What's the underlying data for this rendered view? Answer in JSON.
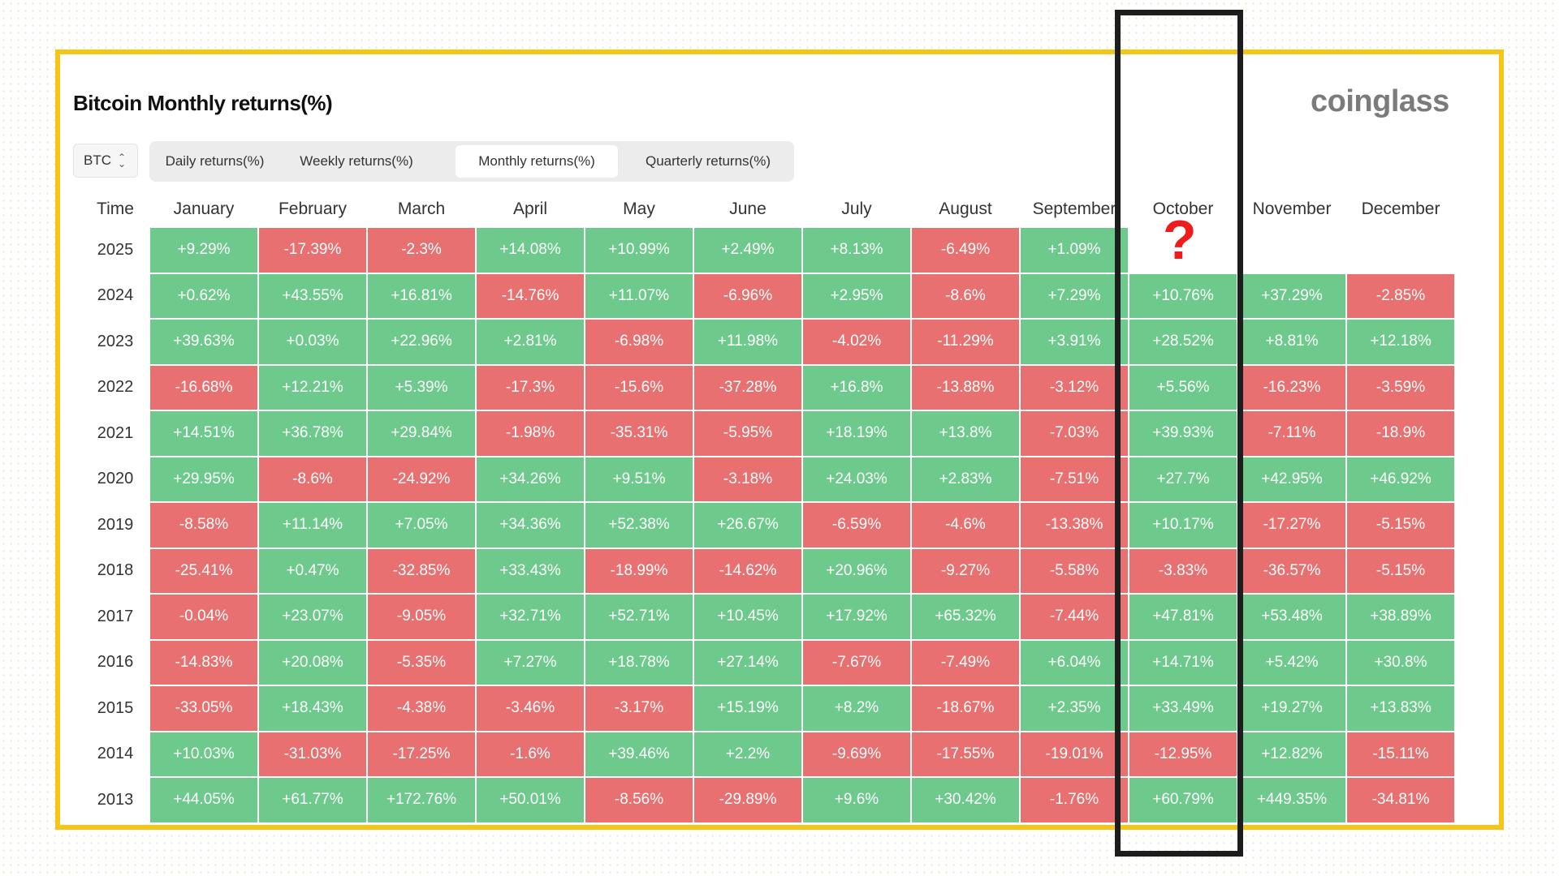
{
  "title": "Bitcoin Monthly returns(%)",
  "brand": "coinglass",
  "asset": {
    "selected": "BTC",
    "icon": "chevron-updown-icon"
  },
  "tabs": [
    {
      "label": "Daily returns(%)",
      "active": false
    },
    {
      "label": "Weekly returns(%)",
      "active": false
    },
    {
      "label": "Monthly returns(%)",
      "active": true
    },
    {
      "label": "Quarterly returns(%)",
      "active": false
    }
  ],
  "table": {
    "time_header": "Time",
    "months": [
      "January",
      "February",
      "March",
      "April",
      "May",
      "June",
      "July",
      "August",
      "September",
      "October",
      "November",
      "December"
    ],
    "rows": [
      {
        "year": "2025",
        "values": [
          "+9.29%",
          "-17.39%",
          "-2.3%",
          "+14.08%",
          "+10.99%",
          "+2.49%",
          "+8.13%",
          "-6.49%",
          "+1.09%",
          "",
          "",
          ""
        ]
      },
      {
        "year": "2024",
        "values": [
          "+0.62%",
          "+43.55%",
          "+16.81%",
          "-14.76%",
          "+11.07%",
          "-6.96%",
          "+2.95%",
          "-8.6%",
          "+7.29%",
          "+10.76%",
          "+37.29%",
          "-2.85%"
        ]
      },
      {
        "year": "2023",
        "values": [
          "+39.63%",
          "+0.03%",
          "+22.96%",
          "+2.81%",
          "-6.98%",
          "+11.98%",
          "-4.02%",
          "-11.29%",
          "+3.91%",
          "+28.52%",
          "+8.81%",
          "+12.18%"
        ]
      },
      {
        "year": "2022",
        "values": [
          "-16.68%",
          "+12.21%",
          "+5.39%",
          "-17.3%",
          "-15.6%",
          "-37.28%",
          "+16.8%",
          "-13.88%",
          "-3.12%",
          "+5.56%",
          "-16.23%",
          "-3.59%"
        ]
      },
      {
        "year": "2021",
        "values": [
          "+14.51%",
          "+36.78%",
          "+29.84%",
          "-1.98%",
          "-35.31%",
          "-5.95%",
          "+18.19%",
          "+13.8%",
          "-7.03%",
          "+39.93%",
          "-7.11%",
          "-18.9%"
        ]
      },
      {
        "year": "2020",
        "values": [
          "+29.95%",
          "-8.6%",
          "-24.92%",
          "+34.26%",
          "+9.51%",
          "-3.18%",
          "+24.03%",
          "+2.83%",
          "-7.51%",
          "+27.7%",
          "+42.95%",
          "+46.92%"
        ]
      },
      {
        "year": "2019",
        "values": [
          "-8.58%",
          "+11.14%",
          "+7.05%",
          "+34.36%",
          "+52.38%",
          "+26.67%",
          "-6.59%",
          "-4.6%",
          "-13.38%",
          "+10.17%",
          "-17.27%",
          "-5.15%"
        ]
      },
      {
        "year": "2018",
        "values": [
          "-25.41%",
          "+0.47%",
          "-32.85%",
          "+33.43%",
          "-18.99%",
          "-14.62%",
          "+20.96%",
          "-9.27%",
          "-5.58%",
          "-3.83%",
          "-36.57%",
          "-5.15%"
        ]
      },
      {
        "year": "2017",
        "values": [
          "-0.04%",
          "+23.07%",
          "-9.05%",
          "+32.71%",
          "+52.71%",
          "+10.45%",
          "+17.92%",
          "+65.32%",
          "-7.44%",
          "+47.81%",
          "+53.48%",
          "+38.89%"
        ]
      },
      {
        "year": "2016",
        "values": [
          "-14.83%",
          "+20.08%",
          "-5.35%",
          "+7.27%",
          "+18.78%",
          "+27.14%",
          "-7.67%",
          "-7.49%",
          "+6.04%",
          "+14.71%",
          "+5.42%",
          "+30.8%"
        ]
      },
      {
        "year": "2015",
        "values": [
          "-33.05%",
          "+18.43%",
          "-4.38%",
          "-3.46%",
          "-3.17%",
          "+15.19%",
          "+8.2%",
          "-18.67%",
          "+2.35%",
          "+33.49%",
          "+19.27%",
          "+13.83%"
        ]
      },
      {
        "year": "2014",
        "values": [
          "+10.03%",
          "-31.03%",
          "-17.25%",
          "-1.6%",
          "+39.46%",
          "+2.2%",
          "-9.69%",
          "-17.55%",
          "-19.01%",
          "-12.95%",
          "+12.82%",
          "-15.11%"
        ]
      },
      {
        "year": "2013",
        "values": [
          "+44.05%",
          "+61.77%",
          "+172.76%",
          "+50.01%",
          "-8.56%",
          "-29.89%",
          "+9.6%",
          "+30.42%",
          "-1.76%",
          "+60.79%",
          "+449.35%",
          "-34.81%"
        ]
      }
    ]
  },
  "annotation": {
    "mark": "?",
    "highlighted_column": "October"
  },
  "colors": {
    "positive": "#6dca8c",
    "negative": "#e87070",
    "frame": "#f5c518",
    "highlight_box": "#1d1d1d",
    "question_mark": "#ee1c1c"
  }
}
